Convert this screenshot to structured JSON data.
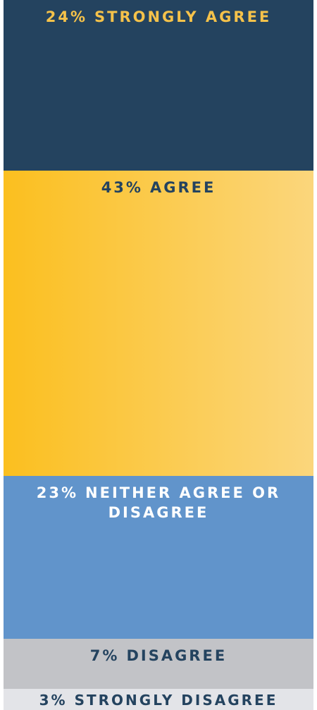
{
  "chart_data": {
    "type": "bar",
    "stacked": true,
    "categories": [
      "STRONGLY AGREE",
      "AGREE",
      "NEITHER AGREE OR DISAGREE",
      "DISAGREE",
      "STRONGLY DISAGREE"
    ],
    "values": [
      24,
      43,
      23,
      7,
      3
    ],
    "value_labels": [
      "24%",
      "43%",
      "23%",
      "7%",
      "3%"
    ],
    "colors": [
      "#24435f",
      [
        "#fbbf1f",
        "#fbd67c"
      ],
      "#6194cb",
      "#c2c3c7",
      "#e3e4e8"
    ],
    "label_colors": [
      "#f5c24a",
      "#24435f",
      "#ffffff",
      "#24435f",
      "#24435f"
    ]
  }
}
